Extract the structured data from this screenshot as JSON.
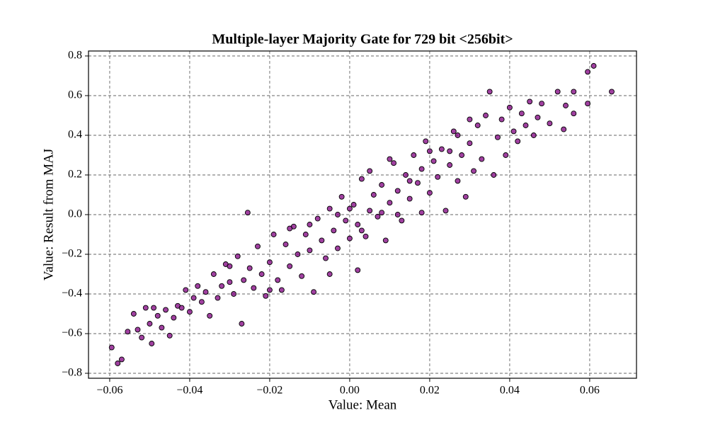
{
  "chart_data": {
    "type": "scatter",
    "title": "Multiple-layer Majority Gate for 729 bit <256bit>",
    "xlabel": "Value: Mean",
    "ylabel": "Value: Result from MAJ",
    "color": "#800080",
    "edgecolor": "#000000",
    "grid": true,
    "xlim": [
      -0.0653,
      0.0717
    ],
    "ylim": [
      -0.825,
      0.825
    ],
    "xticks": [
      {
        "value": -0.06,
        "label": "−0.06"
      },
      {
        "value": -0.04,
        "label": "−0.04"
      },
      {
        "value": -0.02,
        "label": "−0.02"
      },
      {
        "value": 0,
        "label": "0.00"
      },
      0.02,
      0.04,
      0.06
    ],
    "yticks": [
      {
        "value": -0.8,
        "label": "−0.8"
      },
      {
        "value": -0.6,
        "label": "−0.6"
      },
      {
        "value": -0.4,
        "label": "−0.4"
      },
      {
        "value": -0.2,
        "label": "−0.2"
      },
      {
        "value": 0,
        "label": "0.0"
      },
      0.2,
      0.4,
      0.6,
      0.8
    ],
    "x": [
      -0.0595,
      -0.058,
      -0.057,
      -0.0555,
      -0.054,
      -0.053,
      -0.052,
      -0.051,
      -0.05,
      -0.0495,
      -0.049,
      -0.048,
      -0.047,
      -0.046,
      -0.045,
      -0.044,
      -0.043,
      -0.042,
      -0.041,
      -0.04,
      -0.039,
      -0.038,
      -0.037,
      -0.036,
      -0.035,
      -0.034,
      -0.033,
      -0.032,
      -0.031,
      -0.03,
      -0.029,
      -0.028,
      -0.027,
      -0.0265,
      -0.0255,
      -0.025,
      -0.024,
      -0.023,
      -0.022,
      -0.021,
      -0.02,
      -0.019,
      -0.018,
      -0.017,
      -0.016,
      -0.015,
      -0.014,
      -0.013,
      -0.012,
      -0.011,
      -0.01,
      -0.009,
      -0.008,
      -0.007,
      -0.006,
      -0.005,
      -0.004,
      -0.003,
      -0.002,
      -0.001,
      0,
      0.001,
      0.002,
      0.003,
      0.004,
      0.005,
      0.006,
      0.007,
      0.008,
      0.009,
      0.01,
      0.011,
      0.012,
      0.013,
      0.014,
      0.015,
      0.016,
      0.017,
      0.018,
      0.019,
      0.02,
      0.021,
      0.022,
      0.023,
      0.024,
      0.025,
      0.026,
      0.027,
      0.028,
      0.029,
      0.03,
      0.031,
      0.032,
      0.033,
      0.034,
      0.035,
      0.036,
      0.037,
      0.038,
      0.039,
      0.04,
      0.041,
      0.042,
      0.043,
      0.044,
      0.045,
      0.046,
      0.047,
      0.048,
      0.05,
      0.052,
      0.0535,
      0.054,
      0.056,
      0.056,
      0.0595,
      0.0595,
      0.061,
      0.0655,
      -0.01,
      -0.005,
      0,
      0.003,
      0.005,
      0.008,
      0.012,
      0.015,
      0.018,
      0.02,
      0.025,
      -0.015,
      -0.02,
      -0.03,
      0.03,
      0.01,
      -0.003,
      0.002,
      0.027
    ],
    "values": [
      -0.67,
      -0.75,
      -0.73,
      -0.59,
      -0.5,
      -0.58,
      -0.62,
      -0.47,
      -0.55,
      -0.65,
      -0.47,
      -0.51,
      -0.57,
      -0.48,
      -0.61,
      -0.52,
      -0.46,
      -0.47,
      -0.38,
      -0.49,
      -0.42,
      -0.36,
      -0.44,
      -0.39,
      -0.51,
      -0.3,
      -0.42,
      -0.36,
      -0.25,
      -0.34,
      -0.4,
      -0.21,
      -0.55,
      -0.33,
      0.01,
      -0.27,
      -0.37,
      -0.16,
      -0.3,
      -0.41,
      -0.24,
      -0.1,
      -0.33,
      -0.38,
      -0.15,
      -0.26,
      -0.06,
      -0.2,
      -0.31,
      -0.1,
      -0.18,
      -0.39,
      -0.02,
      -0.13,
      -0.22,
      0.03,
      -0.08,
      -0.17,
      0.09,
      -0.03,
      -0.12,
      0.05,
      -0.05,
      0.18,
      -0.11,
      0.02,
      0.1,
      -0.01,
      0.15,
      -0.13,
      0.06,
      0.26,
      0.12,
      -0.03,
      0.2,
      0.08,
      0.3,
      0.16,
      0.23,
      0.37,
      0.11,
      0.27,
      0.19,
      0.33,
      0.02,
      0.25,
      0.42,
      0.17,
      0.3,
      0.09,
      0.36,
      0.22,
      0.45,
      0.28,
      0.5,
      0.62,
      0.2,
      0.39,
      0.48,
      0.3,
      0.54,
      0.42,
      0.37,
      0.51,
      0.45,
      0.57,
      0.4,
      0.49,
      0.56,
      0.46,
      0.62,
      0.43,
      0.55,
      0.62,
      0.51,
      0.72,
      0.56,
      0.75,
      0.62,
      -0.05,
      -0.3,
      0.03,
      -0.08,
      0.22,
      0.01,
      0,
      0.17,
      0.01,
      0.32,
      0.32,
      -0.07,
      -0.38,
      -0.26,
      0.48,
      0.28,
      0,
      -0.28,
      0.4
    ]
  }
}
